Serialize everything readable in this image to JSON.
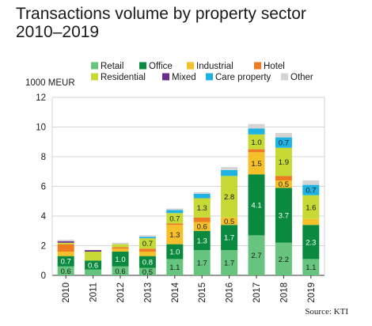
{
  "chart_data": {
    "type": "bar",
    "stacked": true,
    "title": "Transactions volume by property sector\n2010–2019",
    "ylabel": "1000 MEUR",
    "ylim": [
      0,
      12
    ],
    "yticks": [
      0,
      2,
      4,
      6,
      8,
      10,
      12
    ],
    "grid": true,
    "legend_position": "top",
    "categories": [
      "2010",
      "2011",
      "2012",
      "2013",
      "2014",
      "2015",
      "2016",
      "2017",
      "2018",
      "2019"
    ],
    "series": [
      {
        "name": "Retail",
        "color": "#66c47e",
        "values": [
          0.6,
          0.4,
          0.6,
          0.5,
          1.1,
          1.7,
          1.7,
          2.7,
          2.2,
          1.1
        ],
        "labels": [
          "0.6",
          "",
          "0.6",
          "0.5",
          "1.1",
          "1.7",
          "1.7",
          "2.7",
          "2.2",
          "1.1"
        ],
        "label_color": "#1a1a1a"
      },
      {
        "name": "Office",
        "color": "#0a8a3e",
        "values": [
          0.7,
          0.6,
          1.0,
          0.8,
          1.0,
          1.3,
          1.7,
          4.1,
          3.7,
          2.3
        ],
        "labels": [
          "0.7",
          "0.6",
          "1.0",
          "0.8",
          "1.0",
          "1.3",
          "1.7",
          "4.1",
          "3.7",
          "2.3"
        ],
        "label_color": "#ffffff"
      },
      {
        "name": "Industrial",
        "color": "#f5c02a",
        "values": [
          0.3,
          0.0,
          0.2,
          0.3,
          1.3,
          0.6,
          0.5,
          1.5,
          0.5,
          0.4
        ],
        "labels": [
          "",
          "",
          "",
          "",
          "1.3",
          "0.6",
          "0.5",
          "1.5",
          "0.5",
          ""
        ],
        "label_color": "#1a1a1a"
      },
      {
        "name": "Hotel",
        "color": "#ee7b22",
        "values": [
          0.5,
          0.0,
          0.1,
          0.2,
          0.1,
          0.3,
          0.0,
          0.2,
          0.3,
          0.0
        ],
        "labels": [
          "",
          "",
          "",
          "",
          "",
          "",
          "",
          "",
          "",
          ""
        ],
        "label_color": "#1a1a1a"
      },
      {
        "name": "Residential",
        "color": "#c7d934",
        "values": [
          0.1,
          0.6,
          0.2,
          0.7,
          0.7,
          1.3,
          2.8,
          1.0,
          1.9,
          1.6
        ],
        "labels": [
          "",
          "",
          "",
          "0.7",
          "0.7",
          "1.3",
          "2.8",
          "1.0",
          "1.9",
          "1.6"
        ],
        "label_color": "#1a1a1a"
      },
      {
        "name": "Mixed",
        "color": "#6a2c8c",
        "values": [
          0.1,
          0.1,
          0.0,
          0.0,
          0.0,
          0.0,
          0.0,
          0.0,
          0.0,
          0.0
        ],
        "labels": [
          "",
          "",
          "",
          "",
          "",
          "",
          "",
          "",
          "",
          ""
        ],
        "label_color": "#ffffff"
      },
      {
        "name": "Care property",
        "color": "#1fb3e3",
        "values": [
          0.0,
          0.0,
          0.0,
          0.1,
          0.2,
          0.3,
          0.4,
          0.4,
          0.7,
          0.7
        ],
        "labels": [
          "",
          "",
          "",
          "",
          "",
          "",
          "",
          "",
          "0.7",
          "0.7"
        ],
        "label_color": "#1a1a1a"
      },
      {
        "name": "Other",
        "color": "#d4d4d4",
        "values": [
          0.1,
          0.0,
          0.1,
          0.1,
          0.1,
          0.1,
          0.2,
          0.3,
          0.3,
          0.3
        ],
        "labels": [
          "",
          "",
          "",
          "",
          "",
          "",
          "",
          "",
          "",
          ""
        ],
        "label_color": "#1a1a1a"
      }
    ],
    "source": "Source: KTI"
  }
}
